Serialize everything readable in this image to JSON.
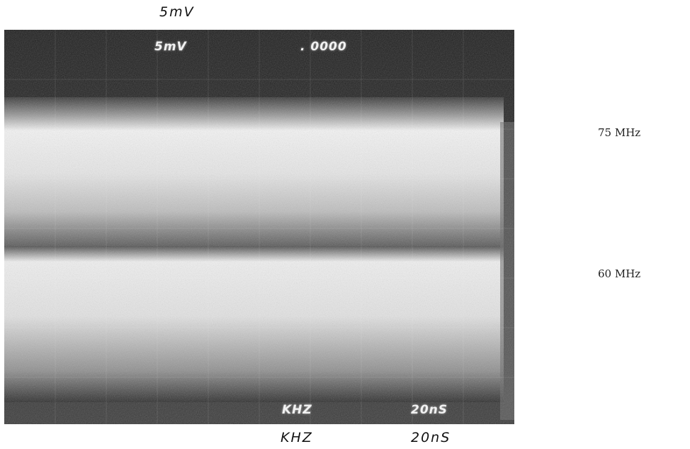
{
  "annotations": {
    "top_volts": "5mV",
    "bottom_freq": "KHZ",
    "bottom_time": "20nS"
  },
  "scope_readouts": {
    "volts": "5mV",
    "counter": ". 0000",
    "freq_unit": "KHZ",
    "time_div": "20nS"
  },
  "traces": [
    {
      "label": "75 MHz"
    },
    {
      "label": "60 MHz"
    }
  ],
  "colors": {
    "screen_dark": "#2a2a2a",
    "trace_glow": "#f5f5f5",
    "paper": "#ffffff"
  }
}
